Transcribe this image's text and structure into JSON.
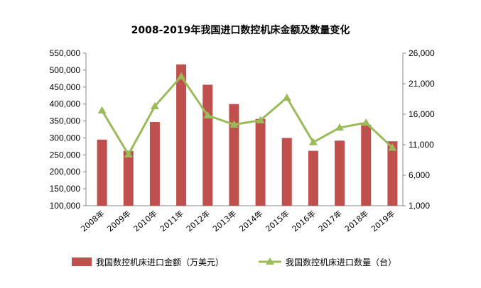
{
  "chart_data": {
    "type": "bar+line",
    "title": "2008-2019年我国进口数控机床金额及数量变化",
    "categories": [
      "2008年",
      "2009年",
      "2010年",
      "2011年",
      "2012年",
      "2013年",
      "2014年",
      "2015年",
      "2016年",
      "2017年",
      "2018年",
      "2019年"
    ],
    "series": [
      {
        "name": "我国数控机床进口金额（万美元）",
        "type": "bar",
        "axis": "left",
        "color": "#C0504D",
        "values": [
          295000,
          262000,
          347000,
          517000,
          457000,
          400000,
          356000,
          300000,
          262000,
          292000,
          339000,
          290000
        ]
      },
      {
        "name": "我国数控机床进口数量（台）",
        "type": "line",
        "axis": "right",
        "color": "#9BBB59",
        "values": [
          16600,
          9400,
          17300,
          22200,
          15800,
          14300,
          15000,
          18700,
          11400,
          13800,
          14600,
          10500
        ]
      }
    ],
    "y_left": {
      "min": 100000,
      "max": 550000,
      "step": 50000,
      "tick_labels": [
        "100,000",
        "150,000",
        "200,000",
        "250,000",
        "300,000",
        "350,000",
        "400,000",
        "450,000",
        "500,000",
        "550,000"
      ]
    },
    "y_right": {
      "min": 1000,
      "max": 26000,
      "step": 5000,
      "tick_labels": [
        "1,000",
        "6,000",
        "11,000",
        "16,000",
        "21,000",
        "26,000"
      ]
    },
    "grid": false,
    "legend_position": "bottom"
  }
}
